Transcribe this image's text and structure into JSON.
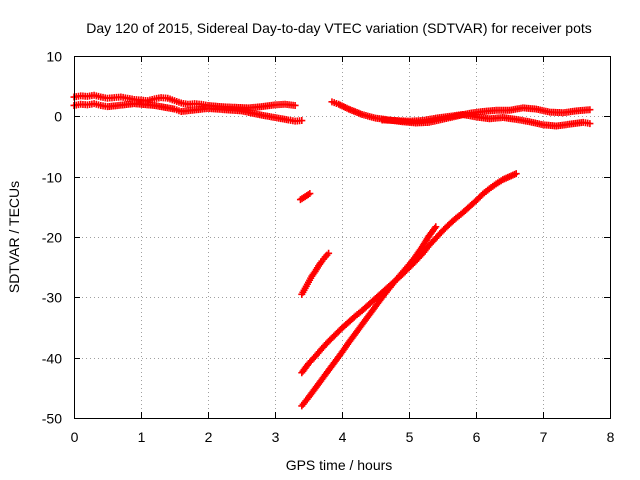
{
  "chart_data": {
    "type": "scatter",
    "title": "Day 120 of 2015, Sidereal Day-to-day VTEC variation (SDTVAR) for receiver pots",
    "xlabel": "GPS time / hours",
    "ylabel": "SDTVAR / TECUs",
    "xlim": [
      0,
      8
    ],
    "ylim": [
      -50,
      10
    ],
    "xticks": [
      0,
      1,
      2,
      3,
      4,
      5,
      6,
      7,
      8
    ],
    "xtick_labels": [
      "0",
      "1",
      "2",
      "3",
      "4",
      "5",
      "6",
      "7",
      "8"
    ],
    "yticks": [
      -50,
      -40,
      -30,
      -20,
      -10,
      0,
      10
    ],
    "ytick_labels": [
      "-50",
      "-40",
      "-30",
      "-20",
      "-10",
      "0",
      "10"
    ],
    "grid": true,
    "legend": false,
    "marker": "plus",
    "color": "#ff0000",
    "series": [
      {
        "points": [
          [
            0.0,
            3.2
          ],
          [
            0.1,
            3.4
          ],
          [
            0.2,
            3.3
          ],
          [
            0.3,
            3.5
          ],
          [
            0.4,
            3.2
          ],
          [
            0.5,
            3.0
          ],
          [
            0.6,
            3.1
          ],
          [
            0.7,
            3.2
          ],
          [
            0.8,
            3.0
          ],
          [
            0.9,
            2.8
          ],
          [
            1.0,
            2.7
          ],
          [
            1.1,
            2.6
          ],
          [
            1.2,
            2.9
          ],
          [
            1.3,
            3.1
          ],
          [
            1.4,
            3.0
          ],
          [
            1.5,
            2.6
          ],
          [
            1.6,
            2.2
          ],
          [
            1.7,
            2.0
          ],
          [
            1.8,
            2.1
          ],
          [
            1.9,
            2.0
          ],
          [
            2.0,
            1.8
          ],
          [
            2.2,
            1.6
          ],
          [
            2.4,
            1.5
          ],
          [
            2.6,
            1.4
          ],
          [
            2.8,
            1.6
          ],
          [
            3.0,
            1.9
          ],
          [
            3.15,
            2.0
          ],
          [
            3.3,
            1.8
          ]
        ]
      },
      {
        "points": [
          [
            0.0,
            1.8
          ],
          [
            0.1,
            2.0
          ],
          [
            0.2,
            1.9
          ],
          [
            0.3,
            2.1
          ],
          [
            0.4,
            1.8
          ],
          [
            0.5,
            1.6
          ],
          [
            0.9,
            2.1
          ],
          [
            1.2,
            1.8
          ],
          [
            1.5,
            1.2
          ],
          [
            1.6,
            0.8
          ],
          [
            2.0,
            1.3
          ],
          [
            2.5,
            0.9
          ],
          [
            2.8,
            0.2
          ],
          [
            3.0,
            -0.2
          ],
          [
            3.2,
            -0.6
          ],
          [
            3.3,
            -0.8
          ],
          [
            3.4,
            -0.7
          ]
        ]
      },
      {
        "points": [
          [
            3.85,
            2.4
          ],
          [
            3.95,
            2.0
          ],
          [
            4.1,
            1.2
          ],
          [
            4.3,
            0.3
          ],
          [
            4.5,
            -0.3
          ],
          [
            4.7,
            -0.6
          ],
          [
            4.9,
            -0.9
          ],
          [
            5.1,
            -1.1
          ],
          [
            5.3,
            -1.0
          ],
          [
            5.5,
            -0.5
          ],
          [
            5.7,
            0.0
          ],
          [
            5.9,
            0.5
          ],
          [
            6.1,
            0.8
          ],
          [
            6.3,
            1.0
          ],
          [
            6.5,
            1.0
          ],
          [
            6.7,
            1.4
          ],
          [
            6.9,
            1.2
          ],
          [
            7.1,
            0.7
          ],
          [
            7.3,
            0.6
          ],
          [
            7.5,
            0.9
          ],
          [
            7.7,
            1.1
          ]
        ]
      },
      {
        "points": [
          [
            4.6,
            -0.6
          ],
          [
            4.8,
            -0.7
          ],
          [
            5.0,
            -0.8
          ],
          [
            5.2,
            -0.7
          ],
          [
            5.4,
            -0.3
          ],
          [
            5.6,
            0.0
          ],
          [
            5.8,
            0.3
          ],
          [
            6.0,
            -0.1
          ],
          [
            6.2,
            -0.4
          ],
          [
            6.4,
            -0.2
          ],
          [
            6.6,
            -0.5
          ],
          [
            6.8,
            -0.9
          ],
          [
            7.0,
            -1.4
          ],
          [
            7.2,
            -1.6
          ],
          [
            7.4,
            -1.3
          ],
          [
            7.6,
            -1.0
          ],
          [
            7.7,
            -1.2
          ]
        ]
      },
      {
        "points": [
          [
            3.38,
            -13.8
          ],
          [
            3.45,
            -13.3
          ],
          [
            3.52,
            -12.8
          ]
        ]
      },
      {
        "points": [
          [
            3.4,
            -29.5
          ],
          [
            3.45,
            -28.5
          ],
          [
            3.5,
            -27.5
          ],
          [
            3.55,
            -26.5
          ],
          [
            3.6,
            -25.7
          ],
          [
            3.65,
            -24.8
          ],
          [
            3.7,
            -24.0
          ],
          [
            3.75,
            -23.3
          ],
          [
            3.8,
            -22.7
          ]
        ]
      },
      {
        "points": [
          [
            3.4,
            -42.5
          ],
          [
            3.5,
            -41.0
          ],
          [
            3.6,
            -39.8
          ],
          [
            3.7,
            -38.5
          ],
          [
            3.8,
            -37.3
          ],
          [
            3.9,
            -36.2
          ],
          [
            4.0,
            -35.1
          ],
          [
            4.1,
            -34.1
          ],
          [
            4.2,
            -33.1
          ],
          [
            4.3,
            -32.2
          ],
          [
            4.4,
            -31.2
          ],
          [
            4.5,
            -30.2
          ],
          [
            4.6,
            -29.2
          ],
          [
            4.7,
            -28.2
          ],
          [
            4.8,
            -27.2
          ],
          [
            4.9,
            -26.2
          ],
          [
            5.0,
            -25.1
          ],
          [
            5.1,
            -24.0
          ],
          [
            5.2,
            -22.8
          ],
          [
            5.3,
            -21.4
          ],
          [
            5.4,
            -20.2
          ],
          [
            5.5,
            -19.0
          ],
          [
            5.6,
            -17.9
          ],
          [
            5.7,
            -16.9
          ],
          [
            5.8,
            -16.0
          ],
          [
            5.9,
            -15.0
          ],
          [
            6.0,
            -14.0
          ],
          [
            6.1,
            -12.9
          ],
          [
            6.2,
            -12.0
          ],
          [
            6.3,
            -11.2
          ],
          [
            6.4,
            -10.5
          ],
          [
            6.5,
            -10.0
          ],
          [
            6.6,
            -9.5
          ]
        ]
      },
      {
        "points": [
          [
            3.4,
            -48.0
          ],
          [
            3.5,
            -46.6
          ],
          [
            3.6,
            -45.1
          ],
          [
            3.7,
            -43.6
          ],
          [
            3.8,
            -42.1
          ],
          [
            3.9,
            -40.6
          ],
          [
            4.0,
            -39.1
          ],
          [
            4.1,
            -37.5
          ],
          [
            4.2,
            -36.0
          ],
          [
            4.3,
            -34.5
          ],
          [
            4.4,
            -33.0
          ],
          [
            4.5,
            -31.5
          ],
          [
            4.6,
            -30.0
          ],
          [
            4.7,
            -28.6
          ],
          [
            4.8,
            -27.2
          ],
          [
            4.9,
            -25.9
          ],
          [
            5.0,
            -24.6
          ],
          [
            5.1,
            -23.2
          ],
          [
            5.2,
            -21.6
          ],
          [
            5.3,
            -19.8
          ],
          [
            5.4,
            -18.3
          ]
        ]
      }
    ]
  }
}
